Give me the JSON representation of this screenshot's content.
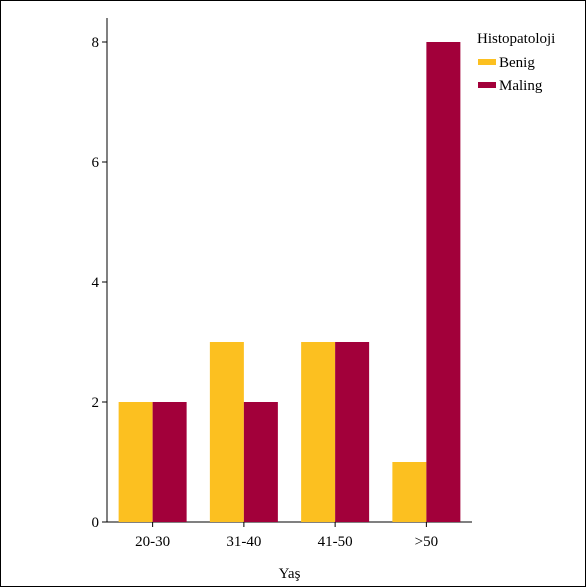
{
  "chart_data": {
    "type": "bar",
    "categories": [
      "20-30",
      "31-40",
      "41-50",
      ">50"
    ],
    "series": [
      {
        "name": "Benig",
        "values": [
          2,
          3,
          3,
          1
        ],
        "color": "#FCC020"
      },
      {
        "name": "Maling",
        "values": [
          2,
          2,
          3,
          8
        ],
        "color": "#A2003A"
      }
    ],
    "xlabel": "Yaş",
    "ylabel": "",
    "ylim": [
      0,
      8.4
    ],
    "yticks": [
      0,
      2,
      4,
      6,
      8
    ],
    "legend": {
      "title": "Histopatoloji",
      "placement": "top-right"
    },
    "grid": false
  }
}
